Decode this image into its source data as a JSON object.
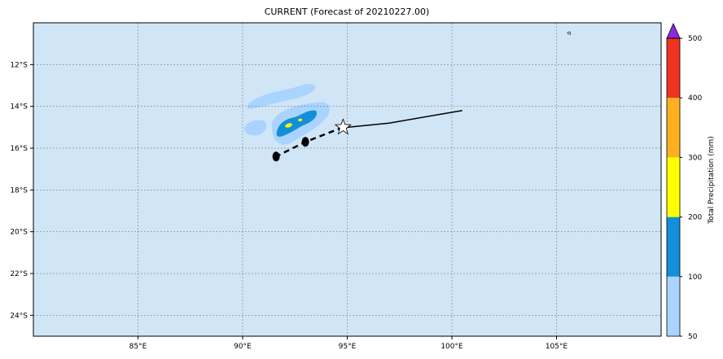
{
  "title": "CURRENT (Forecast of 20210227.00)",
  "colorbar": {
    "label": "Total Precipitation (mm)",
    "ticks": [
      "50",
      "100",
      "200",
      "300",
      "400",
      "500"
    ],
    "colors": [
      "#a9d4ff",
      "#138fd9",
      "#ffff00",
      "#ffb020",
      "#ee3322"
    ],
    "extend_color": "#8a2be2"
  },
  "chart_data": {
    "type": "map",
    "xlim": [
      80,
      110
    ],
    "ylim": [
      -25,
      -10
    ],
    "x_ticks": [
      {
        "v": 85,
        "label": "85°E"
      },
      {
        "v": 90,
        "label": "90°E"
      },
      {
        "v": 95,
        "label": "95°E"
      },
      {
        "v": 100,
        "label": "100°E"
      },
      {
        "v": 105,
        "label": "105°E"
      }
    ],
    "y_ticks": [
      {
        "v": -12,
        "label": "12°S"
      },
      {
        "v": -14,
        "label": "14°S"
      },
      {
        "v": -16,
        "label": "16°S"
      },
      {
        "v": -18,
        "label": "18°S"
      },
      {
        "v": -20,
        "label": "20°S"
      },
      {
        "v": -22,
        "label": "22°S"
      },
      {
        "v": -24,
        "label": "24°S"
      }
    ],
    "grid": true,
    "ocean_color": "#d0e6f6",
    "observed_track": [
      [
        100.5,
        -14.2
      ],
      [
        97.0,
        -14.8
      ],
      [
        95.0,
        -15.0
      ]
    ],
    "forecast_track": [
      [
        94.8,
        -15.0
      ],
      [
        93.0,
        -15.7
      ],
      [
        91.6,
        -16.4
      ]
    ],
    "current_position": [
      94.8,
      -15.0
    ],
    "forecast_points": [
      [
        93.0,
        -15.7
      ],
      [
        91.6,
        -16.4
      ]
    ]
  }
}
